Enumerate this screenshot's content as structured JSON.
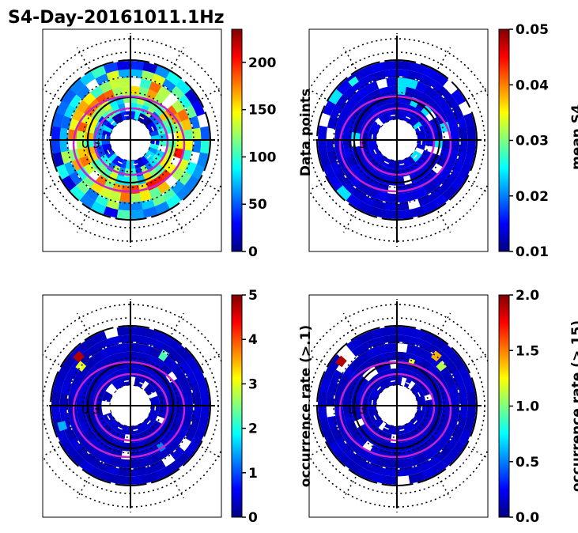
{
  "title": "S4-Day-20161011.1Hz",
  "colors": {
    "jet": [
      "#00007f",
      "#0000ff",
      "#007fff",
      "#00ffff",
      "#7fff7f",
      "#ffff00",
      "#ff7f00",
      "#ff0000",
      "#7f0000"
    ],
    "magenta_contour": "#cc22cc",
    "grid": "#000000"
  },
  "chart_data": [
    {
      "type": "heatmap",
      "projection": "polar",
      "colorbar": {
        "label": "Data points",
        "min": 0,
        "max": 235,
        "ticks": [
          0,
          50,
          100,
          150,
          200
        ]
      },
      "pattern": "dense",
      "inner_label": "0  3"
    },
    {
      "type": "heatmap",
      "projection": "polar",
      "colorbar": {
        "label": "mean S4",
        "min": 0.01,
        "max": 0.05,
        "ticks": [
          0.01,
          0.02,
          0.03,
          0.04,
          0.05
        ],
        "tick_labels": [
          "0.01",
          "0.02",
          "0.03",
          "0.04",
          "0.05"
        ]
      },
      "pattern": "low",
      "inner_label": "0  3"
    },
    {
      "type": "heatmap",
      "projection": "polar",
      "colorbar": {
        "label": "occurrence rate (>.1)",
        "min": 0,
        "max": 5,
        "ticks": [
          0,
          1,
          2,
          3,
          4,
          5
        ]
      },
      "pattern": "sparse",
      "inner_label": "0  3"
    },
    {
      "type": "heatmap",
      "projection": "polar",
      "colorbar": {
        "label": "occurrence rate (>.15)",
        "min": 0,
        "max": 2,
        "ticks": [
          0,
          0.5,
          1,
          1.5,
          2
        ],
        "tick_labels": [
          "0.0",
          "0.5",
          "1.0",
          "1.5",
          "2.0"
        ]
      },
      "pattern": "sparse2",
      "inner_label": "0  3"
    }
  ]
}
